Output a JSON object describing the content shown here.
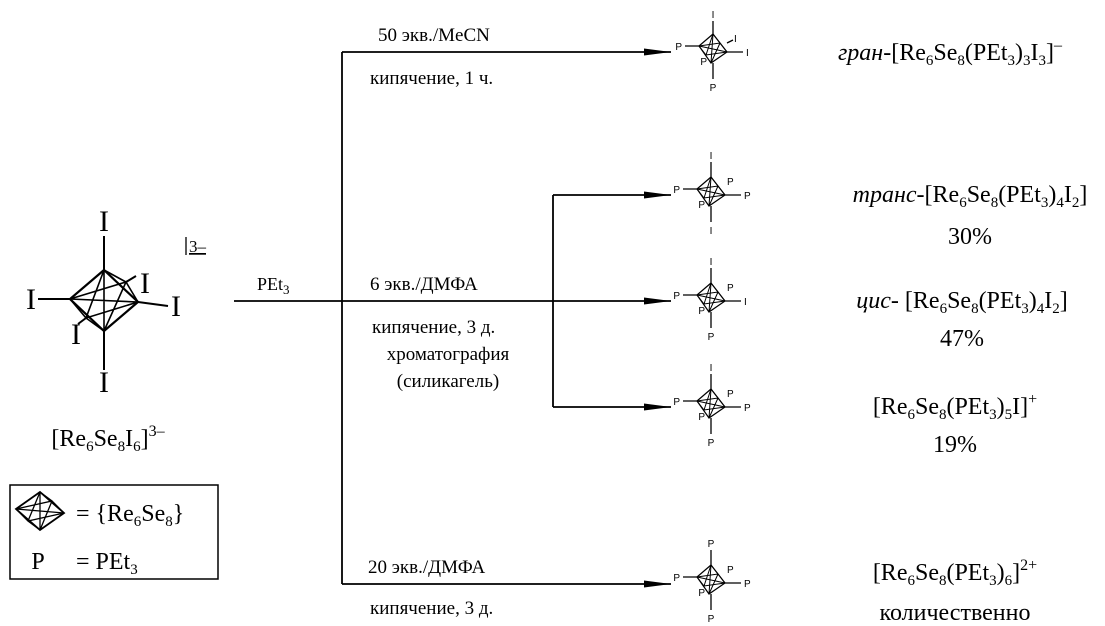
{
  "start": {
    "ligand_symbol": "I",
    "charge": "3–",
    "formula": {
      "a": "[Re",
      "s1": "6",
      "b": "Se",
      "s2": "8",
      "c": "I",
      "s3": "6",
      "d": "]",
      "sup": "3–"
    }
  },
  "legend": {
    "eq": "= {Re",
    "s1": "6",
    "b": "Se",
    "s2": "8",
    "c": "}",
    "p_label": "P",
    "p_eq": "= PEt",
    "p_sub": "3"
  },
  "reagent": {
    "a": "PEt",
    "s": "3"
  },
  "conditions": {
    "top": {
      "line1": "50 экв./MeCN",
      "line2": "кипячение, 1 ч."
    },
    "middle": {
      "line1": "6 экв./ДМФА",
      "line2": "кипячение, 3 д.",
      "line3": "хроматография",
      "line4": "(силикагель)"
    },
    "bottom": {
      "line1": "20 экв./ДМФА",
      "line2": "кипячение, 3 д."
    }
  },
  "mini_labels": {
    "P": "P",
    "I": "I"
  },
  "products": [
    {
      "prefix": "гран",
      "dash": "-[Re",
      "s1": "6",
      "b": "Se",
      "s2": "8",
      "c": "(PEt",
      "s3": "3",
      "d": ")",
      "s4": "3",
      "e": "I",
      "s5": "3",
      "f": "]",
      "sup": "–",
      "yield": ""
    },
    {
      "prefix": "транс",
      "dash": "-[Re",
      "s1": "6",
      "b": "Se",
      "s2": "8",
      "c": "(PEt",
      "s3": "3",
      "d": ")",
      "s4": "4",
      "e": "I",
      "s5": "2",
      "f": "]",
      "sup": "",
      "yield": "30%"
    },
    {
      "prefix": "цис",
      "dash": "- [Re",
      "s1": "6",
      "b": "Se",
      "s2": "8",
      "c": "(PEt",
      "s3": "3",
      "d": ")",
      "s4": "4",
      "e": "I",
      "s5": "2",
      "f": "]",
      "sup": "",
      "yield": "47%"
    },
    {
      "prefix": "",
      "dash": "[Re",
      "s1": "6",
      "b": "Se",
      "s2": "8",
      "c": "(PEt",
      "s3": "3",
      "d": ")",
      "s4": "5",
      "e": "I",
      "s5": "",
      "f": "]",
      "sup": "+",
      "yield": "19%"
    },
    {
      "prefix": "",
      "dash": "[Re",
      "s1": "6",
      "b": "Se",
      "s2": "8",
      "c": "(PEt",
      "s3": "3",
      "d": ")",
      "s4": "6",
      "e": "",
      "s5": "",
      "f": "]",
      "sup": "2+",
      "yield": "количественно"
    }
  ]
}
